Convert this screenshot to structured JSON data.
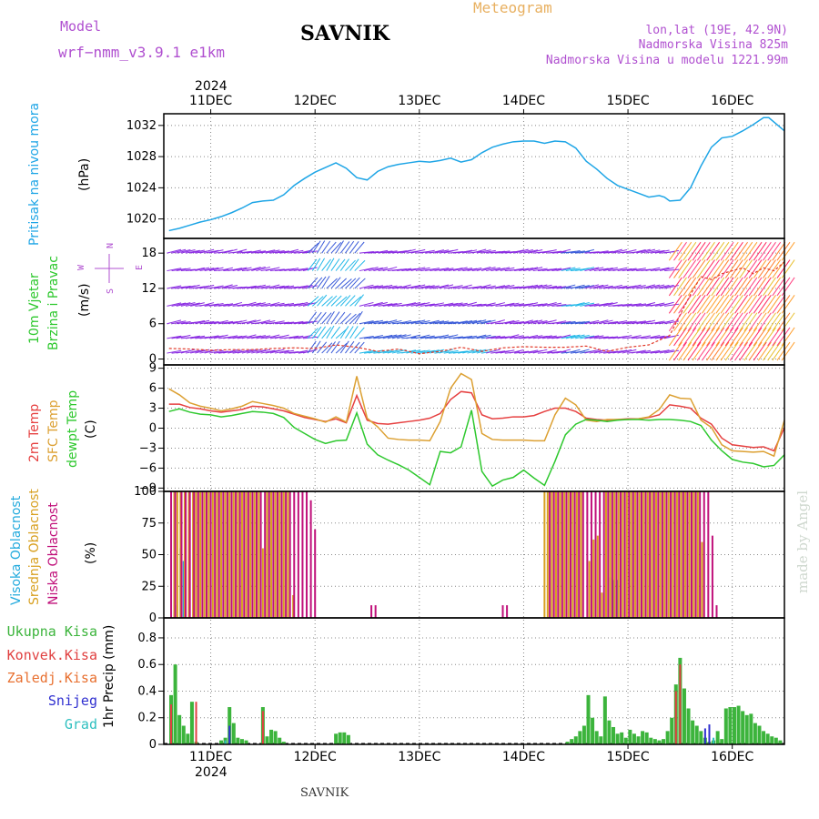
{
  "header": {
    "model_label": "Model",
    "model_name": "wrf−nmm_v3.9.1  e1km",
    "station": "SAVNIK",
    "title": "Meteogram",
    "coords": "lon,lat (19E, 42.9N)",
    "elevation": "Nadmorska Visina 825m",
    "model_elevation": "Nadmorska Visina u modelu 1221.99m"
  },
  "footer": {
    "station": "SAVNIK",
    "watermark": "made by Angel"
  },
  "colors": {
    "pressure": "#1ea5e6",
    "wind_main": "#8a2be2",
    "wind_blue": "#3a5bd9",
    "wind_cyan": "#22b8e8",
    "wind_gust": "#e23a2a",
    "temp2m": "#e64040",
    "sfc": "#dca032",
    "dewpt": "#2ec82e",
    "cloud_high": "#22aadd",
    "cloud_mid": "#d8a020",
    "cloud_low": "#c0107a",
    "precip_total": "#3cb43c",
    "precip_conv": "#e04040",
    "precip_snow": "#3030d0",
    "precip_graupel": "#30c0c0"
  },
  "time_axis": {
    "year_label": "2024",
    "labels": [
      "11DEC",
      "12DEC",
      "13DEC",
      "14DEC",
      "15DEC",
      "16DEC"
    ],
    "days": [
      1,
      2,
      3,
      4,
      5,
      6
    ]
  },
  "panels": {
    "pressure": {
      "ylabel_name": "Pritisak na nivou mora",
      "ylabel_unit": "(hPa)",
      "ticks": [
        "1020",
        "1024",
        "1028",
        "1032"
      ]
    },
    "wind": {
      "ylabel_name_1": "10m Vjetar",
      "ylabel_name_2": "Brzina i Pravac",
      "ylabel_unit": "(m/s)",
      "ticks": [
        "0",
        "6",
        "12",
        "18"
      ],
      "compass": {
        "n": "N",
        "s": "S",
        "w": "W",
        "e": "E"
      }
    },
    "temperature": {
      "ylabel_1": "2m Temp",
      "ylabel_2": "SFC Temp",
      "ylabel_3": "dewpt Temp",
      "ylabel_unit": "(C)",
      "ticks": [
        "−9",
        "−6",
        "−3",
        "0",
        "3",
        "6",
        "9"
      ]
    },
    "cloud": {
      "ylabel_1": "Visoka Oblacnost",
      "ylabel_2": "Srednja Oblacnost",
      "ylabel_3": "Niska Oblacnost",
      "ylabel_unit": "(%)",
      "ticks": [
        "0",
        "25",
        "50",
        "75",
        "100"
      ]
    },
    "precip": {
      "ylabel": "1hr Precip (mm)",
      "ticks": [
        "0",
        "0.2",
        "0.4",
        "0.6",
        "0.8"
      ],
      "legend": [
        "Ukupna Kisa",
        "Konvek.Kisa",
        "Zaledj.Kisa",
        "Snijeg",
        "Grad"
      ]
    }
  },
  "chart_data": [
    {
      "type": "line",
      "name": "sea-level-pressure",
      "x_unit": "days from 10DEC 00UTC",
      "ylim": [
        1017.5,
        1033.5
      ],
      "x": [
        0.6,
        0.7,
        0.8,
        0.9,
        1.0,
        1.1,
        1.2,
        1.3,
        1.4,
        1.5,
        1.6,
        1.7,
        1.8,
        1.9,
        2.0,
        2.1,
        2.2,
        2.3,
        2.4,
        2.5,
        2.6,
        2.7,
        2.8,
        2.9,
        3.0,
        3.1,
        3.2,
        3.3,
        3.4,
        3.5,
        3.6,
        3.7,
        3.8,
        3.9,
        4.0,
        4.1,
        4.2,
        4.3,
        4.4,
        4.5,
        4.6,
        4.7,
        4.8,
        4.9,
        5.0,
        5.1,
        5.2,
        5.3,
        5.35,
        5.4,
        5.5,
        5.6,
        5.7,
        5.8,
        5.9,
        6.0,
        6.1,
        6.2,
        6.3,
        6.35,
        6.5
      ],
      "y": [
        1018.5,
        1018.8,
        1019.2,
        1019.6,
        1019.9,
        1020.3,
        1020.8,
        1021.4,
        1022.1,
        1022.3,
        1022.4,
        1023.1,
        1024.3,
        1025.2,
        1026.0,
        1026.6,
        1027.2,
        1026.5,
        1025.3,
        1025.0,
        1026.1,
        1026.7,
        1027.0,
        1027.2,
        1027.4,
        1027.3,
        1027.5,
        1027.8,
        1027.3,
        1027.6,
        1028.5,
        1029.2,
        1029.6,
        1029.9,
        1030.0,
        1030.0,
        1029.7,
        1030.0,
        1029.9,
        1029.1,
        1027.4,
        1026.4,
        1025.2,
        1024.3,
        1023.8,
        1023.3,
        1022.8,
        1023.0,
        1022.8,
        1022.3,
        1022.4,
        1024.0,
        1026.8,
        1029.2,
        1030.4,
        1030.6,
        1031.3,
        1032.1,
        1033.0,
        1033.0,
        1031.3
      ]
    },
    {
      "type": "line",
      "name": "wind-gust-10m",
      "x_unit": "days from 10DEC 00UTC",
      "ylim": [
        -1,
        20.5
      ],
      "x": [
        0.6,
        0.8,
        1.0,
        1.2,
        1.4,
        1.6,
        1.8,
        2.0,
        2.2,
        2.4,
        2.6,
        2.8,
        3.0,
        3.2,
        3.4,
        3.6,
        3.8,
        4.0,
        4.2,
        4.4,
        4.6,
        4.8,
        5.0,
        5.2,
        5.4,
        5.5,
        5.6,
        5.7,
        5.8,
        5.9,
        6.0,
        6.1,
        6.2,
        6.3,
        6.4,
        6.5
      ],
      "y": [
        1.8,
        1.7,
        1.5,
        1.6,
        1.6,
        1.8,
        1.9,
        1.8,
        2.4,
        2.0,
        1.3,
        1.7,
        0.9,
        1.3,
        2.0,
        1.3,
        1.9,
        2.1,
        2.0,
        2.0,
        2.2,
        1.3,
        2.0,
        2.4,
        4.0,
        7.5,
        11.0,
        14.0,
        13.5,
        14.5,
        15.0,
        15.5,
        14.5,
        15.5,
        15.0,
        16.5
      ]
    },
    {
      "type": "line",
      "name": "temperature",
      "x_unit": "days from 10DEC 00UTC",
      "ylim": [
        -9.5,
        9.5
      ],
      "x": [
        0.6,
        0.7,
        0.8,
        0.9,
        1.0,
        1.1,
        1.2,
        1.3,
        1.4,
        1.5,
        1.6,
        1.7,
        1.8,
        1.9,
        2.0,
        2.1,
        2.2,
        2.3,
        2.4,
        2.5,
        2.6,
        2.7,
        2.8,
        2.9,
        3.0,
        3.1,
        3.2,
        3.3,
        3.4,
        3.5,
        3.6,
        3.7,
        3.8,
        3.9,
        4.0,
        4.1,
        4.2,
        4.3,
        4.4,
        4.5,
        4.6,
        4.7,
        4.8,
        4.9,
        5.0,
        5.1,
        5.2,
        5.3,
        5.4,
        5.5,
        5.6,
        5.7,
        5.8,
        5.9,
        6.0,
        6.1,
        6.2,
        6.3,
        6.4,
        6.5
      ],
      "series": [
        {
          "name": "2m Temp",
          "values": [
            3.6,
            3.6,
            3.1,
            2.9,
            2.6,
            2.4,
            2.6,
            2.8,
            3.3,
            3.2,
            2.9,
            2.6,
            2.1,
            1.6,
            1.3,
            1.0,
            1.4,
            0.8,
            4.9,
            1.2,
            0.7,
            0.6,
            0.8,
            1.0,
            1.2,
            1.5,
            2.2,
            4.3,
            5.5,
            5.3,
            2.0,
            1.4,
            1.5,
            1.7,
            1.7,
            1.9,
            2.5,
            3.0,
            3.0,
            2.5,
            1.5,
            1.3,
            1.2,
            1.3,
            1.4,
            1.4,
            1.6,
            2.0,
            3.5,
            3.3,
            3.0,
            1.5,
            0.6,
            -1.5,
            -2.5,
            -2.7,
            -2.9,
            -2.8,
            -3.4,
            0.1
          ]
        },
        {
          "name": "SFC Temp",
          "values": [
            5.9,
            5.0,
            3.8,
            3.3,
            3.0,
            2.6,
            2.9,
            3.3,
            4.0,
            3.7,
            3.4,
            3.0,
            2.2,
            1.8,
            1.4,
            0.9,
            1.7,
            0.9,
            7.8,
            1.5,
            0.2,
            -1.5,
            -1.7,
            -1.8,
            -1.8,
            -1.9,
            1.0,
            6.0,
            8.2,
            7.3,
            -0.8,
            -1.7,
            -1.8,
            -1.8,
            -1.8,
            -1.9,
            -1.9,
            2.0,
            4.5,
            3.5,
            1.2,
            1.0,
            1.3,
            1.3,
            1.3,
            1.4,
            1.7,
            2.8,
            5.0,
            4.5,
            4.4,
            1.2,
            0.1,
            -2.5,
            -3.4,
            -3.5,
            -3.6,
            -3.5,
            -4.2,
            1.2
          ]
        },
        {
          "name": "dewpt Temp",
          "values": [
            2.5,
            2.9,
            2.4,
            2.1,
            2.0,
            1.7,
            1.9,
            2.2,
            2.5,
            2.4,
            2.2,
            1.6,
            0.1,
            -0.8,
            -1.7,
            -2.3,
            -1.9,
            -1.8,
            2.3,
            -2.4,
            -4.0,
            -4.8,
            -5.5,
            -6.3,
            -7.4,
            -8.5,
            -3.5,
            -3.7,
            -2.8,
            2.7,
            -6.5,
            -8.7,
            -7.8,
            -7.4,
            -6.3,
            -7.5,
            -8.6,
            -5.0,
            -1.0,
            0.6,
            1.3,
            1.2,
            1.0,
            1.2,
            1.3,
            1.3,
            1.2,
            1.3,
            1.3,
            1.2,
            1.0,
            0.4,
            -1.8,
            -3.4,
            -4.7,
            -5.1,
            -5.3,
            -5.8,
            -5.6,
            -4.0
          ]
        }
      ]
    },
    {
      "type": "bar",
      "name": "cloud-cover",
      "x_unit": "days from 10DEC 00UTC",
      "ylim": [
        0,
        100
      ],
      "series": [
        {
          "name": "Visoka Oblacnost",
          "x": [
            0.66,
            0.71,
            0.74,
            4.83,
            4.86,
            4.9
          ],
          "values": [
            10,
            55,
            45,
            32,
            30,
            30
          ]
        },
        {
          "name": "Srednja Oblacnost",
          "x": [
            0.65,
            0.68,
            0.71,
            0.75,
            0.79,
            0.83,
            0.86,
            0.9,
            0.94,
            0.98,
            1.02,
            1.06,
            1.1,
            1.14,
            1.18,
            1.22,
            1.26,
            1.3,
            1.34,
            1.38,
            1.42,
            1.46,
            1.5,
            1.54,
            1.58,
            1.62,
            1.66,
            1.7,
            1.74,
            1.79,
            4.2,
            4.23,
            4.27,
            4.31,
            4.35,
            4.39,
            4.43,
            4.47,
            4.51,
            4.55,
            4.63,
            4.67,
            4.71,
            4.75,
            4.79,
            4.83,
            4.87,
            4.91,
            4.95,
            4.99,
            5.03,
            5.07,
            5.11,
            5.15,
            5.19,
            5.23,
            5.27,
            5.31,
            5.35,
            5.39,
            5.43,
            5.47,
            5.51,
            5.55,
            5.59,
            5.63,
            5.67,
            5.71
          ],
          "values": [
            100,
            100,
            100,
            100,
            100,
            100,
            100,
            100,
            100,
            100,
            100,
            100,
            100,
            100,
            100,
            100,
            100,
            100,
            100,
            100,
            100,
            100,
            55,
            100,
            100,
            100,
            100,
            100,
            100,
            18,
            100,
            100,
            100,
            100,
            100,
            100,
            100,
            100,
            100,
            100,
            45,
            62,
            65,
            20,
            100,
            100,
            100,
            100,
            100,
            100,
            100,
            100,
            100,
            100,
            100,
            100,
            100,
            100,
            100,
            100,
            100,
            100,
            100,
            100,
            100,
            100,
            100,
            60
          ]
        },
        {
          "name": "Niska Oblacnost",
          "x": [
            0.62,
            0.66,
            0.72,
            0.76,
            0.8,
            0.84,
            0.88,
            0.92,
            0.96,
            1.0,
            1.04,
            1.08,
            1.12,
            1.16,
            1.2,
            1.24,
            1.28,
            1.32,
            1.36,
            1.4,
            1.44,
            1.48,
            1.52,
            1.56,
            1.6,
            1.64,
            1.68,
            1.72,
            1.76,
            1.8,
            1.84,
            1.88,
            1.92,
            1.96,
            2.0,
            2.54,
            2.58,
            3.8,
            3.84,
            4.25,
            4.29,
            4.33,
            4.37,
            4.41,
            4.45,
            4.49,
            4.53,
            4.57,
            4.61,
            4.65,
            4.69,
            4.73,
            4.77,
            4.81,
            4.85,
            4.89,
            4.93,
            4.97,
            5.01,
            5.05,
            5.09,
            5.13,
            5.17,
            5.21,
            5.25,
            5.29,
            5.33,
            5.37,
            5.41,
            5.45,
            5.49,
            5.53,
            5.57,
            5.61,
            5.65,
            5.69,
            5.73,
            5.77,
            5.81,
            5.85
          ],
          "values": [
            100,
            100,
            100,
            100,
            100,
            100,
            100,
            100,
            100,
            100,
            100,
            100,
            100,
            100,
            100,
            100,
            100,
            100,
            100,
            100,
            100,
            100,
            100,
            100,
            100,
            100,
            100,
            100,
            100,
            100,
            100,
            100,
            100,
            93,
            70,
            10,
            10,
            10,
            10,
            100,
            100,
            100,
            100,
            100,
            100,
            100,
            100,
            100,
            100,
            100,
            100,
            100,
            100,
            100,
            100,
            100,
            100,
            100,
            100,
            100,
            100,
            100,
            100,
            100,
            100,
            100,
            100,
            100,
            100,
            100,
            100,
            100,
            100,
            100,
            100,
            100,
            100,
            100,
            65,
            10
          ]
        }
      ]
    },
    {
      "type": "bar",
      "name": "hourly-precipitation",
      "x_unit": "days from 10DEC 00UTC",
      "ylim": [
        0,
        0.95
      ],
      "series": [
        {
          "name": "Ukupna Kisa",
          "x": [
            0.62,
            0.66,
            0.7,
            0.74,
            0.78,
            0.82,
            0.86,
            1.1,
            1.14,
            1.18,
            1.22,
            1.26,
            1.3,
            1.34,
            1.5,
            1.54,
            1.58,
            1.62,
            1.66,
            1.7,
            2.2,
            2.24,
            2.28,
            2.32,
            4.42,
            4.46,
            4.5,
            4.54,
            4.58,
            4.62,
            4.66,
            4.7,
            4.74,
            4.78,
            4.82,
            4.86,
            4.9,
            4.94,
            4.98,
            5.02,
            5.06,
            5.1,
            5.14,
            5.18,
            5.22,
            5.26,
            5.3,
            5.34,
            5.38,
            5.42,
            5.46,
            5.5,
            5.54,
            5.58,
            5.62,
            5.66,
            5.7,
            5.74,
            5.78,
            5.82,
            5.86,
            5.9,
            5.94,
            5.98,
            6.02,
            6.06,
            6.1,
            6.14,
            6.18,
            6.22,
            6.26,
            6.3,
            6.34,
            6.38,
            6.42,
            6.46
          ],
          "values": [
            0.37,
            0.6,
            0.22,
            0.14,
            0.08,
            0.32,
            0.02,
            0.03,
            0.05,
            0.28,
            0.16,
            0.05,
            0.04,
            0.03,
            0.28,
            0.06,
            0.11,
            0.1,
            0.05,
            0.02,
            0.08,
            0.09,
            0.09,
            0.07,
            0.02,
            0.04,
            0.06,
            0.1,
            0.14,
            0.37,
            0.2,
            0.1,
            0.06,
            0.36,
            0.18,
            0.13,
            0.08,
            0.09,
            0.05,
            0.11,
            0.08,
            0.06,
            0.1,
            0.09,
            0.05,
            0.04,
            0.03,
            0.04,
            0.1,
            0.2,
            0.45,
            0.65,
            0.42,
            0.27,
            0.18,
            0.14,
            0.1,
            0.05,
            0.02,
            0.03,
            0.1,
            0.04,
            0.27,
            0.28,
            0.28,
            0.29,
            0.25,
            0.22,
            0.23,
            0.16,
            0.14,
            0.1,
            0.08,
            0.06,
            0.05,
            0.03
          ]
        },
        {
          "name": "Konvek.Kisa",
          "x": [
            0.62,
            0.86,
            1.5,
            5.46,
            5.5
          ],
          "values": [
            0.3,
            0.32,
            0.25,
            0.4,
            0.6
          ]
        },
        {
          "name": "Snijeg",
          "x": [
            1.18,
            5.74,
            5.78
          ],
          "values": [
            0.14,
            0.12,
            0.15
          ]
        },
        {
          "name": "Grad",
          "x": [
            1.14,
            5.82
          ],
          "values": [
            0.03,
            0.05
          ]
        }
      ]
    }
  ]
}
